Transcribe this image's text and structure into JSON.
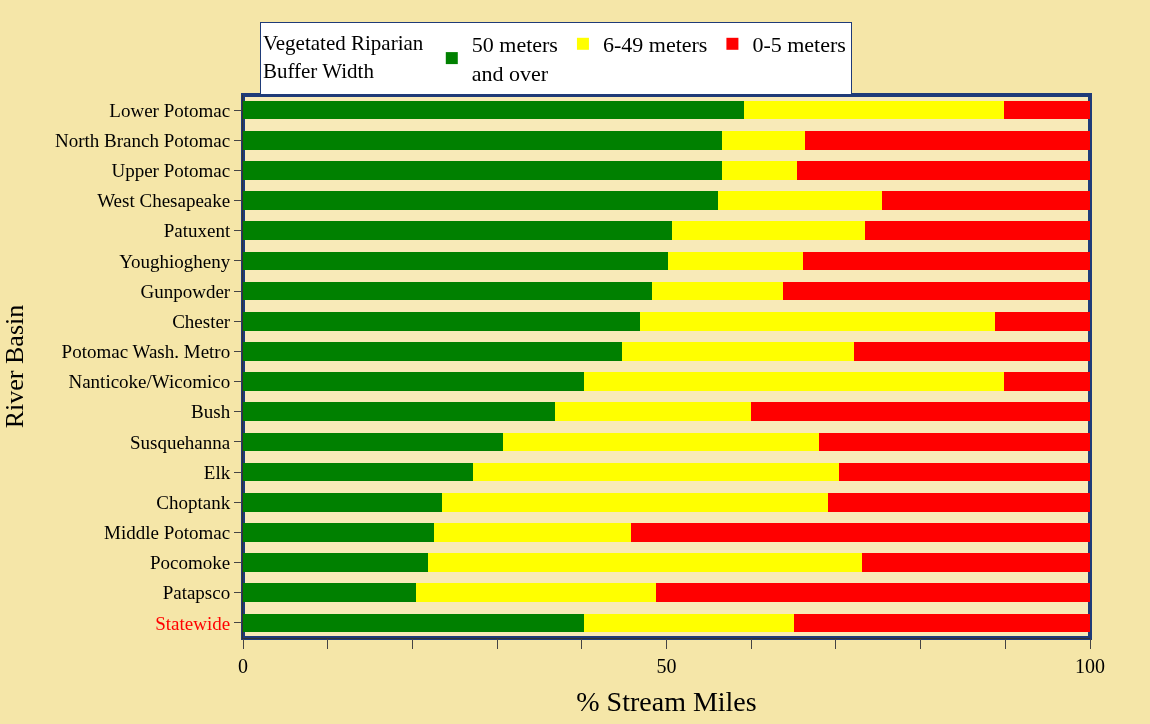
{
  "chart_data": {
    "type": "bar",
    "orientation": "horizontal",
    "stacked": true,
    "xlabel": "% Stream Miles",
    "ylabel": "River Basin",
    "legend_title": "Vegetated Riparian\nBuffer Width",
    "legend": "top",
    "categories": [
      "Lower Potomac",
      "North Branch Potomac",
      "Upper Potomac",
      "West Chesapeake",
      "Patuxent",
      "Youghiogheny",
      "Gunpowder",
      "Chester",
      "Potomac Wash. Metro",
      "Nanticoke/Wicomico",
      "Bush",
      "Susquehanna",
      "Elk",
      "Choptank",
      "Middle Potomac",
      "Pocomoke",
      "Patapsco",
      "Statewide"
    ],
    "series": [
      {
        "name": "50 meters\nand over",
        "color": "#008000",
        "values": [
          59.1,
          56.6,
          56.6,
          56.1,
          50.7,
          50.2,
          48.3,
          46.9,
          44.7,
          40.3,
          36.8,
          30.7,
          27.2,
          23.5,
          22.5,
          21.8,
          20.4,
          40.3
        ]
      },
      {
        "name": "6-49 meters",
        "color": "#ffff00",
        "values": [
          30.7,
          9.7,
          8.8,
          19.4,
          22.7,
          15.9,
          15.5,
          41.9,
          27.4,
          49.6,
          23.2,
          37.3,
          43.2,
          45.6,
          23.3,
          51.3,
          28.4,
          24.8
        ]
      },
      {
        "name": "0-5 meters",
        "color": "#ff0000",
        "values": [
          10.2,
          33.7,
          34.6,
          24.5,
          26.6,
          33.9,
          36.2,
          11.2,
          27.9,
          10.1,
          40.0,
          32.0,
          29.6,
          30.9,
          54.2,
          26.9,
          51.2,
          34.9
        ]
      }
    ],
    "xlim": [
      0,
      100
    ],
    "xticks": [
      0,
      {
        "value": 10,
        "label": null
      },
      {
        "value": 20,
        "label": null
      },
      {
        "value": 30,
        "label": null
      },
      {
        "value": 40,
        "label": null
      },
      50,
      {
        "value": 60,
        "label": null
      },
      {
        "value": 70,
        "label": null
      },
      {
        "value": 80,
        "label": null
      },
      {
        "value": 90,
        "label": null
      },
      100
    ],
    "grid": false
  }
}
